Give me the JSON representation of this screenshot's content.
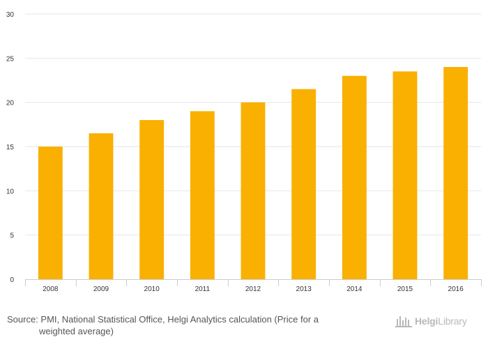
{
  "chart_data": {
    "type": "bar",
    "categories": [
      "2008",
      "2009",
      "2010",
      "2011",
      "2012",
      "2013",
      "2014",
      "2015",
      "2016"
    ],
    "values": [
      15,
      16.5,
      18,
      19,
      20,
      21.5,
      23,
      23.5,
      24
    ],
    "ylim": [
      0,
      30
    ],
    "yticks": [
      0,
      5,
      10,
      15,
      20,
      25,
      30
    ],
    "grid": true,
    "legend": "none",
    "bar_color": "#f9b000",
    "title": "",
    "xlabel": "",
    "ylabel": ""
  },
  "footer": {
    "source_line1": "Source: PMI, National Statistical Office, Helgi Analytics calculation (Price for a",
    "source_line2": "weighted average)",
    "brand_part1": "Helgi",
    "brand_part2": "Library"
  },
  "colors": {
    "bar": "#f9b000",
    "grid": "#e6e6e6",
    "axis": "#cccccc",
    "logo": "#b8b8b8"
  }
}
